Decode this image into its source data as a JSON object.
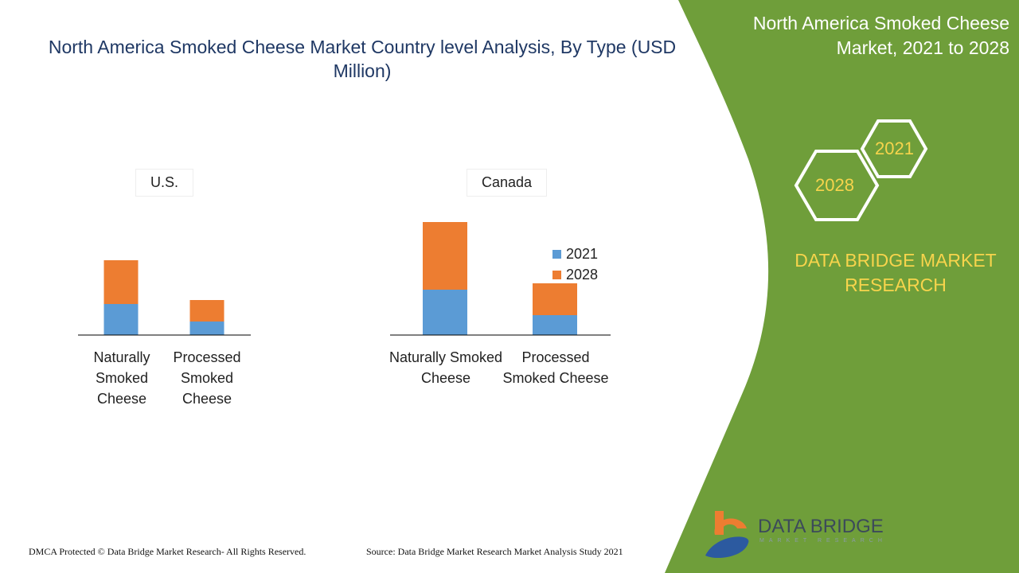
{
  "title": "North America Smoked Cheese Market Country level Analysis, By Type (USD Million)",
  "panel": {
    "title": "North America Smoked Cheese Market, 2021 to 2028",
    "hex_a": "2021",
    "hex_b": "2028",
    "brand": "DATA BRIDGE MARKET RESEARCH",
    "logo_text": "DATA BRIDGE",
    "logo_sub": "MARKET RESEARCH",
    "color": "#6f9e3a"
  },
  "footer": {
    "left": "DMCA Protected © Data Bridge Market Research- All Rights Reserved.",
    "right": "Source: Data Bridge Market Research Market Analysis Study 2021"
  },
  "chart_data": [
    {
      "type": "bar",
      "stacked": true,
      "title": "U.S.",
      "categories": [
        "Naturally Smoked Cheese",
        "Processed Smoked Cheese"
      ],
      "series": [
        {
          "name": "2021",
          "color": "#5b9bd5",
          "values": [
            39,
            17
          ]
        },
        {
          "name": "2028",
          "color": "#ed7d31",
          "values": [
            55,
            27
          ]
        }
      ],
      "ylim": [
        0,
        142
      ],
      "grid": false
    },
    {
      "type": "bar",
      "stacked": true,
      "title": "Canada",
      "categories": [
        "Naturally Smoked Cheese",
        "Processed Smoked Cheese"
      ],
      "series": [
        {
          "name": "2021",
          "color": "#5b9bd5",
          "values": [
            57,
            25
          ]
        },
        {
          "name": "2028",
          "color": "#ed7d31",
          "values": [
            85,
            40
          ]
        }
      ],
      "ylim": [
        0,
        142
      ],
      "grid": false,
      "legend": "right"
    }
  ]
}
